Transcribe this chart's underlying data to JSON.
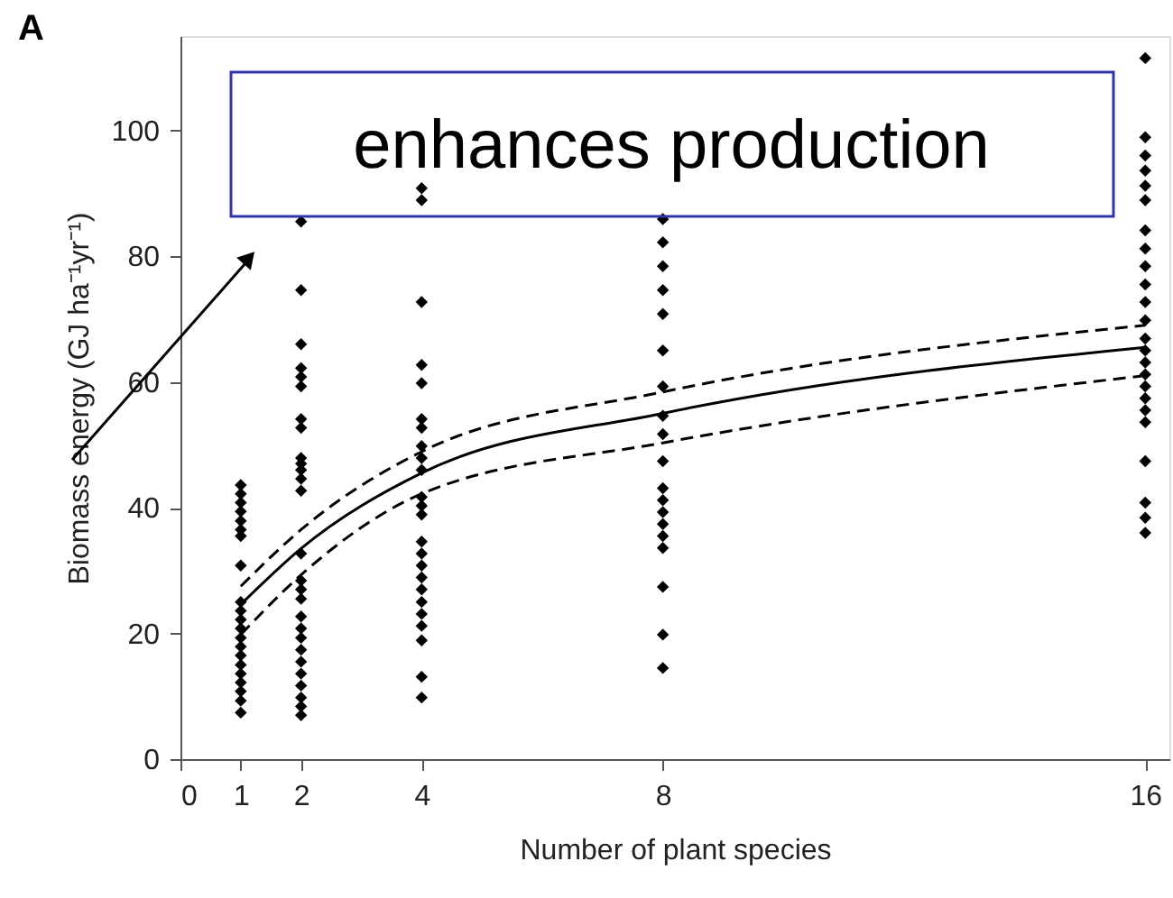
{
  "chart_data": {
    "type": "scatter",
    "xlabel": "Number of plant species",
    "ylabel": "Biomass energy (GJ ha⁻¹yr⁻¹)",
    "annotations": [
      "A",
      "enhances production"
    ],
    "xlim": [
      0,
      16.4
    ],
    "xticks": [
      0,
      1,
      2,
      4,
      8,
      16
    ],
    "ylim": [
      0,
      115
    ],
    "yticks": [
      0,
      20,
      40,
      60,
      80,
      100
    ],
    "grid": false,
    "marker": "diamond",
    "series": [
      {
        "color": "#000000",
        "x": [
          1,
          1,
          1,
          1,
          1,
          1,
          1,
          1,
          1,
          1,
          1,
          1,
          1,
          1,
          1,
          1,
          1,
          1,
          1,
          1,
          1,
          2,
          2,
          2,
          2,
          2,
          2,
          2,
          2,
          2,
          2,
          2,
          2,
          2,
          2,
          2,
          2,
          2,
          2,
          2,
          2,
          2,
          2,
          2,
          2,
          2,
          2,
          2,
          4,
          4,
          4,
          4,
          4,
          4,
          4,
          4,
          4,
          4,
          4,
          4,
          4,
          4,
          4,
          4,
          4,
          4,
          4,
          4,
          4,
          4,
          4,
          4,
          8,
          8,
          8,
          8,
          8,
          8,
          8,
          8,
          8,
          8,
          8,
          8,
          8,
          8,
          8,
          8,
          8,
          8,
          8,
          16,
          16,
          16,
          16,
          16,
          16,
          16,
          16,
          16,
          16,
          16,
          16,
          16,
          16,
          16,
          16,
          16,
          16,
          16,
          16,
          16,
          16,
          16,
          16
        ],
        "values": [
          43.6,
          42.2,
          40.8,
          39.4,
          37.9,
          36.5,
          35.5,
          30.8,
          25.0,
          23.6,
          22.2,
          20.8,
          19.3,
          17.9,
          16.5,
          15.0,
          13.6,
          12.2,
          10.8,
          9.3,
          7.4,
          85.5,
          74.6,
          66.0,
          62.2,
          60.8,
          59.3,
          54.1,
          52.7,
          47.9,
          47.0,
          46.0,
          44.6,
          42.7,
          32.7,
          28.4,
          27.0,
          25.5,
          22.7,
          20.8,
          19.3,
          17.4,
          15.5,
          13.6,
          11.7,
          9.8,
          8.4,
          7.0,
          90.8,
          88.9,
          72.7,
          62.7,
          59.8,
          54.1,
          52.7,
          49.8,
          47.9,
          46.0,
          41.7,
          40.3,
          38.9,
          34.6,
          32.7,
          30.8,
          28.9,
          27.0,
          25.0,
          23.1,
          21.2,
          18.9,
          13.1,
          9.8,
          85.9,
          82.2,
          78.4,
          74.6,
          70.8,
          65.0,
          59.3,
          54.6,
          51.7,
          47.4,
          43.1,
          41.2,
          39.3,
          37.4,
          35.5,
          33.6,
          27.4,
          19.8,
          14.5,
          111.5,
          98.9,
          96.0,
          93.6,
          91.2,
          88.9,
          84.1,
          81.2,
          78.4,
          75.5,
          72.7,
          69.8,
          66.9,
          65.0,
          63.1,
          61.2,
          59.3,
          57.4,
          55.5,
          53.6,
          47.4,
          40.8,
          38.4,
          36.0
        ]
      },
      {
        "type": "line",
        "color": "#000000",
        "line_style": "solid",
        "marker": "none",
        "x": [
          1,
          2,
          4,
          8,
          16
        ],
        "values": [
          24.6,
          33.5,
          45.5,
          55.0,
          65.5
        ]
      },
      {
        "type": "line",
        "color": "#000000",
        "line_style": "dashed",
        "marker": "none",
        "x": [
          1,
          2,
          4,
          8,
          16
        ],
        "values": [
          27.5,
          36.5,
          48.9,
          58.4,
          69.0
        ]
      },
      {
        "type": "line",
        "color": "#000000",
        "line_style": "dashed",
        "marker": "none",
        "x": [
          1,
          2,
          4,
          8,
          16
        ],
        "values": [
          19.8,
          29.3,
          42.2,
          50.3,
          61.0
        ]
      }
    ]
  }
}
